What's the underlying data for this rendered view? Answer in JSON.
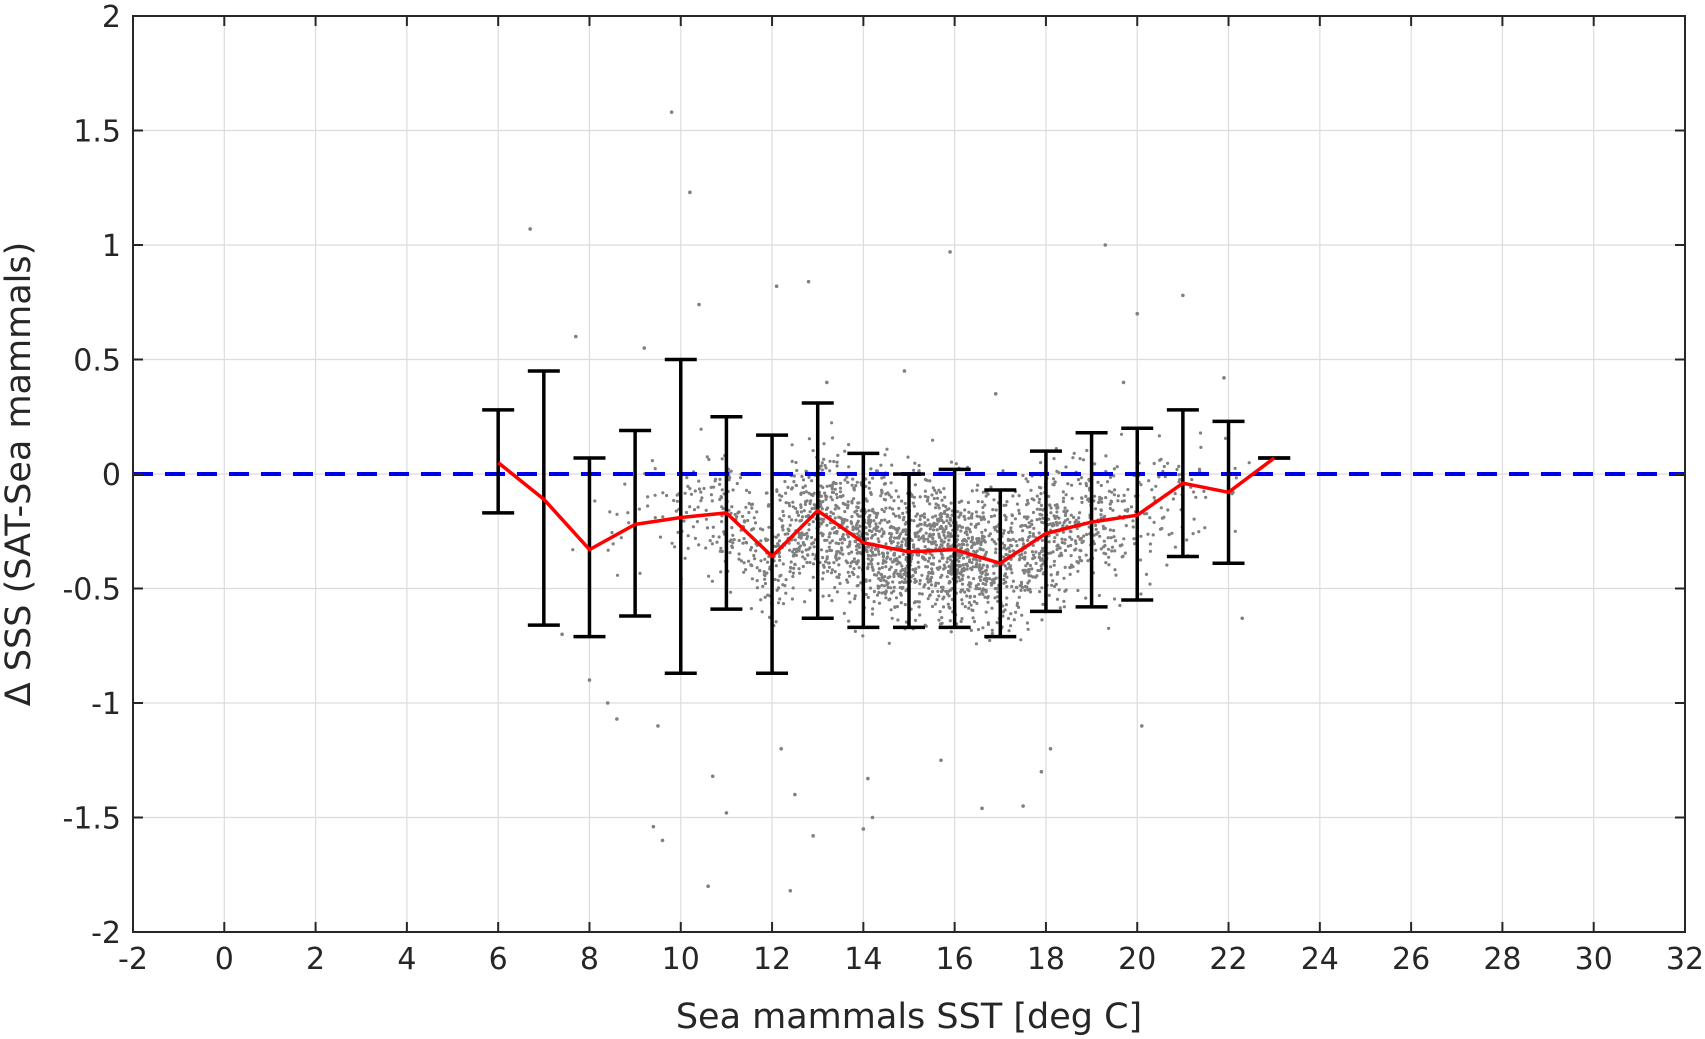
{
  "chart_data": {
    "type": "scatter",
    "title": "",
    "xlabel": "Sea mammals SST [deg C]",
    "ylabel": "Δ SSS (SAT-Sea mammals)",
    "xlim": [
      -2,
      32
    ],
    "ylim": [
      -2,
      2
    ],
    "xticks": [
      -2,
      0,
      2,
      4,
      6,
      8,
      10,
      12,
      14,
      16,
      18,
      20,
      22,
      24,
      26,
      28,
      30,
      32
    ],
    "yticks": [
      -2,
      -1.5,
      -1,
      -0.5,
      0,
      0.5,
      1,
      1.5,
      2
    ],
    "xtick_labels": [
      "-2",
      "0",
      "2",
      "4",
      "6",
      "8",
      "10",
      "12",
      "14",
      "16",
      "18",
      "20",
      "22",
      "24",
      "26",
      "28",
      "30",
      "32"
    ],
    "ytick_labels": [
      "-2",
      "-1.5",
      "-1",
      "-0.5",
      "0",
      "0.5",
      "1",
      "1.5",
      "2"
    ],
    "grid": true,
    "reference_line": {
      "y": 0,
      "style": "dashed",
      "color": "#0000ee"
    },
    "series": [
      {
        "type": "line_with_errorbars",
        "color": "#ff0000",
        "errorbar_color": "#000000",
        "x": [
          6,
          7,
          8,
          9,
          10,
          11,
          12,
          13,
          14,
          15,
          16,
          17,
          18,
          19,
          20,
          21,
          22,
          23
        ],
        "y": [
          0.05,
          -0.11,
          -0.33,
          -0.22,
          -0.19,
          -0.17,
          -0.36,
          -0.16,
          -0.3,
          -0.34,
          -0.33,
          -0.39,
          -0.26,
          -0.21,
          -0.18,
          -0.04,
          -0.08,
          0.07
        ],
        "lower": [
          -0.17,
          -0.66,
          -0.71,
          -0.62,
          -0.87,
          -0.59,
          -0.87,
          -0.63,
          -0.67,
          -0.67,
          -0.67,
          -0.71,
          -0.6,
          -0.58,
          -0.55,
          -0.36,
          -0.39,
          0.07
        ],
        "upper": [
          0.28,
          0.45,
          0.07,
          0.19,
          0.5,
          0.25,
          0.17,
          0.31,
          0.09,
          0.0,
          0.02,
          -0.07,
          0.1,
          0.18,
          0.2,
          0.28,
          0.23,
          0.07
        ]
      }
    ],
    "scatter": {
      "color": "#808080",
      "description_points": {
        "x": [
          9.8,
          10.2,
          6.7,
          15.9,
          19.3,
          12.1,
          12.8,
          10.4,
          20.0,
          21.0,
          9.4,
          9.6,
          10.6,
          12.4,
          12.9,
          14.0,
          14.2,
          16.6,
          17.5,
          18.1,
          8.0,
          8.4,
          8.6,
          9.5,
          10.7,
          11.0,
          12.2,
          12.5,
          14.1,
          15.7,
          17.9,
          20.1,
          22.3,
          7.4,
          7.7,
          9.2,
          13.2,
          14.9,
          16.9,
          19.7,
          21.9
        ],
        "y": [
          1.58,
          1.23,
          1.07,
          0.97,
          1.0,
          0.82,
          0.84,
          0.74,
          0.7,
          0.78,
          -1.54,
          -1.6,
          -1.8,
          -1.82,
          -1.58,
          -1.55,
          -1.5,
          -1.46,
          -1.45,
          -1.2,
          -0.9,
          -1.0,
          -1.07,
          -1.1,
          -1.32,
          -1.48,
          -1.2,
          -1.4,
          -1.33,
          -1.25,
          -1.3,
          -1.1,
          -0.63,
          -0.7,
          0.6,
          0.55,
          0.4,
          0.45,
          0.35,
          0.4,
          0.42
        ]
      },
      "cloud": {
        "count": 2400,
        "x_range": [
          6,
          23
        ],
        "x_center": 15.5,
        "x_spread": 2.6,
        "y_spread": 0.3
      }
    }
  }
}
